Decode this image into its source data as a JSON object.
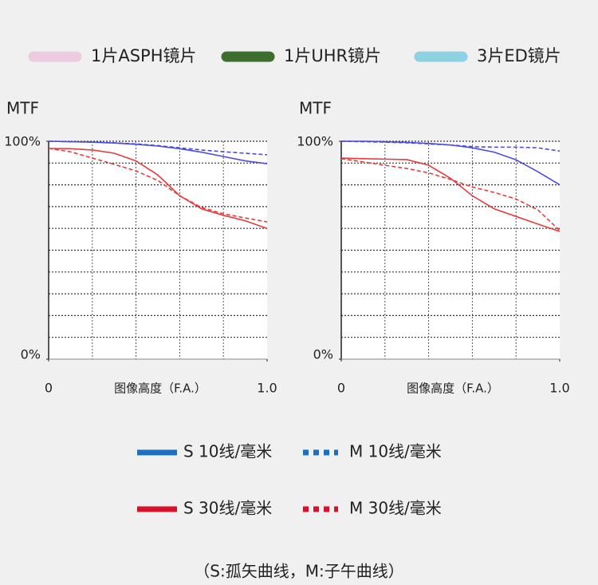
{
  "lens_legend": [
    {
      "label": "1片ASPH镜片",
      "color": "#eccbe0"
    },
    {
      "label": "1片UHR镜片",
      "color": "#3d6e2d"
    },
    {
      "label": "3片ED镜片",
      "color": "#8fd0e3"
    }
  ],
  "chart_data": [
    {
      "type": "line",
      "ylabel": "MTF",
      "xlabel": "图像高度（F.A.）",
      "x": [
        0,
        0.1,
        0.2,
        0.3,
        0.4,
        0.5,
        0.6,
        0.7,
        0.8,
        0.9,
        1.0
      ],
      "xlim": [
        0,
        1
      ],
      "ylim": [
        0,
        100
      ],
      "xticks": [
        0,
        {
          "value": 1,
          "label": "1.0"
        }
      ],
      "yticks": [
        {
          "value": 0,
          "label": "0%"
        },
        {
          "value": 100,
          "label": "100%"
        }
      ],
      "x_gridlines": [
        0.2,
        0.4,
        0.6,
        0.8
      ],
      "y_gridlines": [
        10,
        20,
        30,
        40,
        50,
        60,
        70,
        80,
        90,
        100
      ],
      "series": [
        {
          "color": "#4a4ae8",
          "dashed": false,
          "values": [
            100,
            99.8,
            99.6,
            99.2,
            98.6,
            97.8,
            96.6,
            95,
            93,
            91,
            89.7
          ]
        },
        {
          "color": "#4a4ae8",
          "dashed": true,
          "values": [
            100,
            99.8,
            99.6,
            99.3,
            98.8,
            98,
            97,
            96,
            95.2,
            94.5,
            93.8
          ]
        },
        {
          "color": "#e83c3c",
          "dashed": false,
          "values": [
            96.7,
            96.6,
            96,
            94.5,
            91,
            84.5,
            75,
            69,
            66,
            63.5,
            60
          ]
        },
        {
          "color": "#e83c3c",
          "dashed": true,
          "values": [
            96.7,
            95.2,
            92.3,
            89.4,
            86.4,
            82,
            75,
            69.6,
            66.7,
            64.8,
            63
          ]
        }
      ]
    },
    {
      "type": "line",
      "ylabel": "MTF",
      "xlabel": "图像高度（F.A.）",
      "x": [
        0,
        0.1,
        0.2,
        0.3,
        0.4,
        0.5,
        0.6,
        0.7,
        0.8,
        0.9,
        1.0
      ],
      "xlim": [
        0,
        1
      ],
      "ylim": [
        0,
        100
      ],
      "xticks": [
        0,
        {
          "value": 1,
          "label": "1.0"
        }
      ],
      "yticks": [
        {
          "value": 0,
          "label": "0%"
        },
        {
          "value": 100,
          "label": "100%"
        }
      ],
      "x_gridlines": [
        0.2,
        0.4,
        0.6,
        0.8
      ],
      "y_gridlines": [
        10,
        20,
        30,
        40,
        50,
        60,
        70,
        80,
        90,
        100
      ],
      "series": [
        {
          "color": "#4a4ae8",
          "dashed": false,
          "values": [
            100,
            100,
            99.8,
            99.5,
            99,
            98.3,
            97,
            95,
            91.5,
            86,
            80
          ]
        },
        {
          "color": "#4a4ae8",
          "dashed": true,
          "values": [
            100,
            99.8,
            99.6,
            99.3,
            98.8,
            98.3,
            97.5,
            97.3,
            97.3,
            97,
            95.5
          ]
        },
        {
          "color": "#e83c3c",
          "dashed": false,
          "values": [
            92.3,
            92,
            91.8,
            91.6,
            89,
            83,
            75,
            69,
            65.5,
            62,
            58.6
          ]
        },
        {
          "color": "#e83c3c",
          "dashed": true,
          "values": [
            92,
            90.5,
            89,
            87.5,
            85.5,
            82.5,
            79,
            76.5,
            73.5,
            68.5,
            59
          ]
        }
      ]
    }
  ],
  "line_legend": [
    {
      "label": "S 10线/毫米",
      "color": "#1a6fc0",
      "dashed": false
    },
    {
      "label": "M  10线/毫米",
      "color": "#1a6fc0",
      "dashed": true
    },
    {
      "label": "S 30线/毫米",
      "color": "#d8102a",
      "dashed": false
    },
    {
      "label": "M  30线/毫米",
      "color": "#d8102a",
      "dashed": true
    }
  ],
  "footnote": "（S:孤矢曲线，M:子午曲线）"
}
